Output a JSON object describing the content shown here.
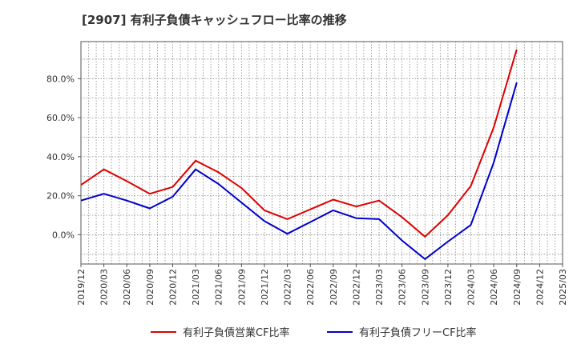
{
  "chart_data": {
    "type": "line",
    "title": "[2907]  有利子負債キャッシュフロー比率の推移",
    "xlabel": "",
    "ylabel": "",
    "x_ticks": [
      "2019/12",
      "2020/03",
      "2020/06",
      "2020/09",
      "2020/12",
      "2021/03",
      "2021/06",
      "2021/09",
      "2021/12",
      "2022/03",
      "2022/06",
      "2022/09",
      "2022/12",
      "2023/03",
      "2023/06",
      "2023/09",
      "2023/12",
      "2024/03",
      "2024/06",
      "2024/09",
      "2024/12",
      "2025/03"
    ],
    "y_ticks": [
      "0.0%",
      "20.0%",
      "40.0%",
      "60.0%",
      "80.0%"
    ],
    "y_tick_values": [
      0,
      20,
      40,
      60,
      80
    ],
    "ylim": [
      -15,
      99
    ],
    "grid": true,
    "legend_position": "bottom",
    "series": [
      {
        "name": "有利子負債営業CF比率",
        "color": "#dd0000",
        "values": [
          25.5,
          33.5,
          27.5,
          21.0,
          24.5,
          38.0,
          32.0,
          24.0,
          12.5,
          8.0,
          13.0,
          18.0,
          14.5,
          17.5,
          9.0,
          -1.0,
          10.0,
          25.0,
          55.0,
          95.0
        ]
      },
      {
        "name": "有利子負債フリーCF比率",
        "color": "#0000cc",
        "values": [
          17.5,
          21.0,
          17.5,
          13.5,
          19.5,
          33.5,
          26.0,
          16.5,
          7.0,
          0.5,
          6.5,
          12.5,
          8.5,
          8.0,
          -3.0,
          -12.5,
          -3.5,
          5.0,
          37.0,
          78.0
        ]
      }
    ]
  }
}
